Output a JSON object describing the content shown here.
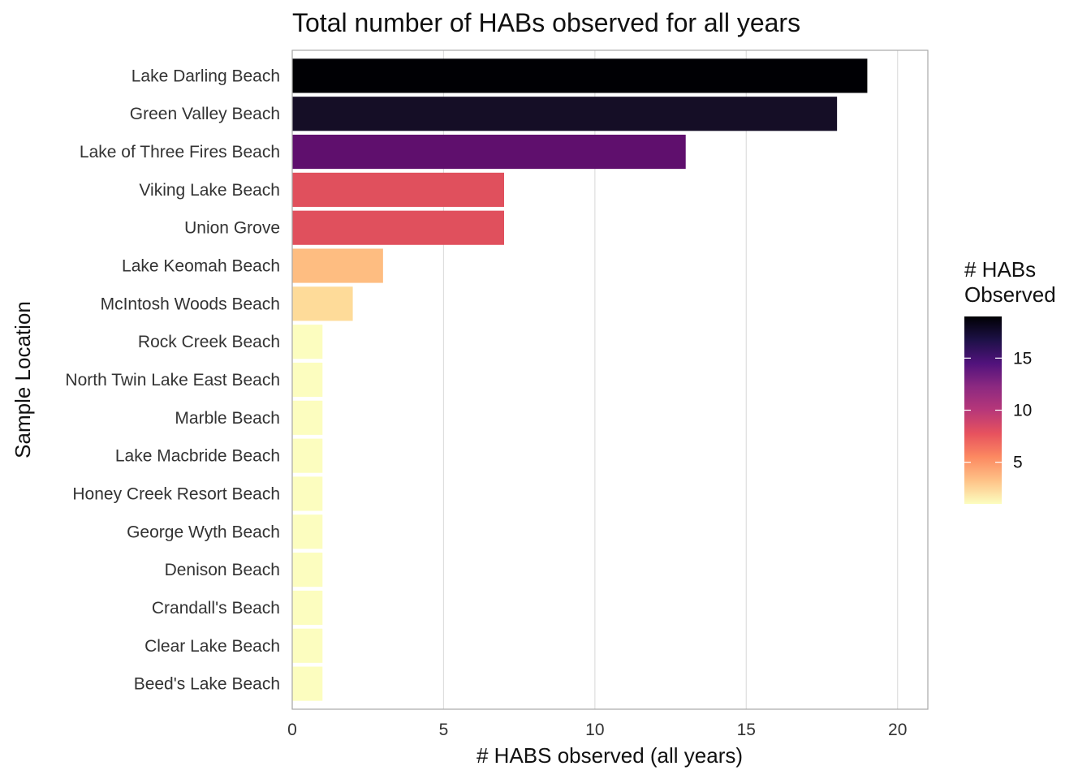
{
  "chart_data": {
    "type": "bar",
    "orientation": "horizontal",
    "title": "Total number of HABs observed for all years",
    "xlabel": "# HABS observed (all years)",
    "ylabel": "Sample Location",
    "xlim": [
      0,
      21
    ],
    "xticks": [
      0,
      5,
      10,
      15,
      20
    ],
    "grid": true,
    "categories": [
      "Lake Darling Beach",
      "Green Valley Beach",
      "Lake of Three Fires Beach",
      "Viking Lake Beach",
      "Union Grove",
      "Lake Keomah Beach",
      "McIntosh Woods Beach",
      "Rock Creek Beach",
      "North Twin Lake East Beach",
      "Marble Beach",
      "Lake Macbride Beach",
      "Honey Creek Resort Beach",
      "George Wyth Beach",
      "Denison Beach",
      "Crandall's Beach",
      "Clear Lake Beach",
      "Beed's Lake Beach"
    ],
    "values": [
      19,
      18,
      13,
      7,
      7,
      3,
      2,
      1,
      1,
      1,
      1,
      1,
      1,
      1,
      1,
      1,
      1
    ],
    "colors": [
      "#000004",
      "#150e26",
      "#5f0f6d",
      "#e0505d",
      "#e0505d",
      "#febd81",
      "#fedb99",
      "#fcfdbf",
      "#fcfdbf",
      "#fcfdbf",
      "#fcfdbf",
      "#fcfdbf",
      "#fcfdbf",
      "#fcfdbf",
      "#fcfdbf",
      "#fcfdbf",
      "#fcfdbf"
    ],
    "legend": {
      "title_lines": [
        "# HABs",
        "Observed"
      ],
      "position": "right",
      "range": [
        1,
        19
      ],
      "ticks": [
        5,
        10,
        15
      ],
      "colormap": "magma (reversed)",
      "gradient_stops": [
        "#fcfdbf",
        "#fec287",
        "#fc8961",
        "#e7525e",
        "#b73779",
        "#8c2981",
        "#51127c",
        "#1d1147",
        "#000004"
      ]
    }
  }
}
